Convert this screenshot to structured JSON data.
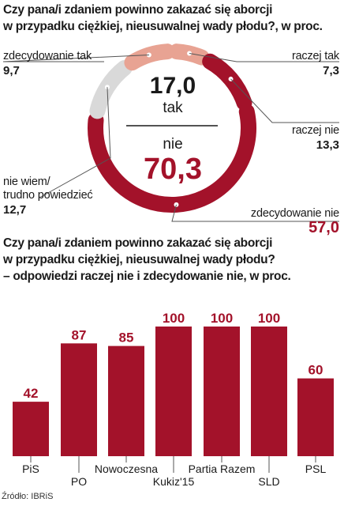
{
  "chart1": {
    "title": "Czy pana/i zdaniem powinno zakazać się aborcji\nw przypadku ciężkiej, nieusuwalnej wady płodu?, w proc.",
    "center": {
      "tak_value": "17,0",
      "tak_label": "tak",
      "nie_label": "nie",
      "nie_value": "70,3"
    },
    "labels": {
      "zdecydowanie_tak": "zdecydowanie tak",
      "zdecydowanie_tak_value": "9,7",
      "raczej_tak": "raczej tak",
      "raczej_tak_value": "7,3",
      "raczej_nie": "raczej nie",
      "raczej_nie_value": "13,3",
      "nie_wiem": "nie wiem/\ntrudno powiedzieć",
      "nie_wiem_value": "12,7",
      "zdecydowanie_nie": "zdecydowanie nie",
      "zdecydowanie_nie_value": "57,0"
    },
    "colors": {
      "tak": "#e8a393",
      "nie": "#a3122a",
      "unknown": "#d9d9d9"
    }
  },
  "chart_data": [
    {
      "type": "pie",
      "title": "Czy pana/i zdaniem powinno zakazać się aborcji w przypadku ciężkiej, nieusuwalnej wady płodu?, w proc.",
      "categories": [
        "zdecydowanie tak",
        "raczej tak",
        "raczej nie",
        "zdecydowanie nie",
        "nie wiem/trudno powiedzieć"
      ],
      "values": [
        9.7,
        7.3,
        13.3,
        57.0,
        12.7
      ]
    },
    {
      "type": "bar",
      "title": "Czy pana/i zdaniem powinno zakazać się aborcji w przypadku ciężkiej, nieusuwalnej wady płodu? – odpowiedzi raczej nie i zdecydowanie nie, w proc.",
      "categories": [
        "PiS",
        "PO",
        "Nowoczesna",
        "Kukiz'15",
        "Partia Razem",
        "SLD",
        "PSL"
      ],
      "values": [
        42,
        87,
        85,
        100,
        100,
        100,
        60
      ],
      "ylim": [
        0,
        100
      ]
    }
  ],
  "chart2": {
    "title": "Czy pana/i zdaniem powinno zakazać się aborcji\nw przypadku ciężkiej, nieusuwalnej wady płodu?\n– odpowiedzi raczej nie i zdecydowanie nie, w proc.",
    "bar_color": "#a3122a"
  },
  "source": "Źródło: IBRiS"
}
